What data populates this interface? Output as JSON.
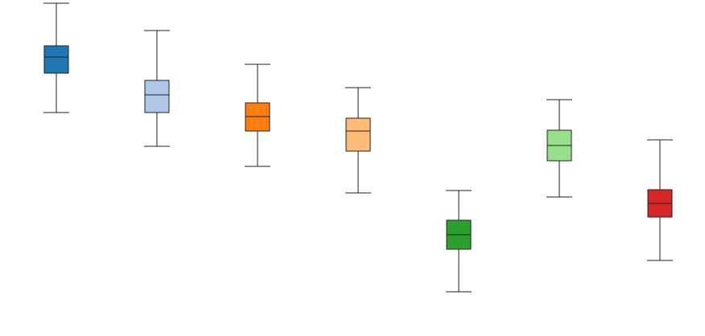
{
  "chart_data": {
    "type": "box",
    "ylim": [
      0,
      100
    ],
    "boxes": [
      {
        "color": "#1f77b4",
        "min": 65,
        "q1": 77.25,
        "median": 82.25,
        "q3": 85.75,
        "max": 99
      },
      {
        "color": "#aec7e8",
        "min": 54.5,
        "q1": 65,
        "median": 70.5,
        "q3": 75,
        "max": 90.5
      },
      {
        "color": "#ff7f0e",
        "min": 48.25,
        "q1": 59.25,
        "median": 63.75,
        "q3": 68,
        "max": 80
      },
      {
        "color": "#ffbb78",
        "min": 40,
        "q1": 53,
        "median": 59.25,
        "q3": 63.25,
        "max": 72.75
      },
      {
        "color": "#2ca02c",
        "min": 9.25,
        "q1": 22.5,
        "median": 27,
        "q3": 31.5,
        "max": 40.75
      },
      {
        "color": "#98df8a",
        "min": 38.75,
        "q1": 50,
        "median": 54.75,
        "q3": 59.5,
        "max": 69
      },
      {
        "color": "#d62728",
        "min": 19,
        "q1": 32.5,
        "median": 36.75,
        "q3": 41,
        "max": 56.5
      }
    ]
  }
}
